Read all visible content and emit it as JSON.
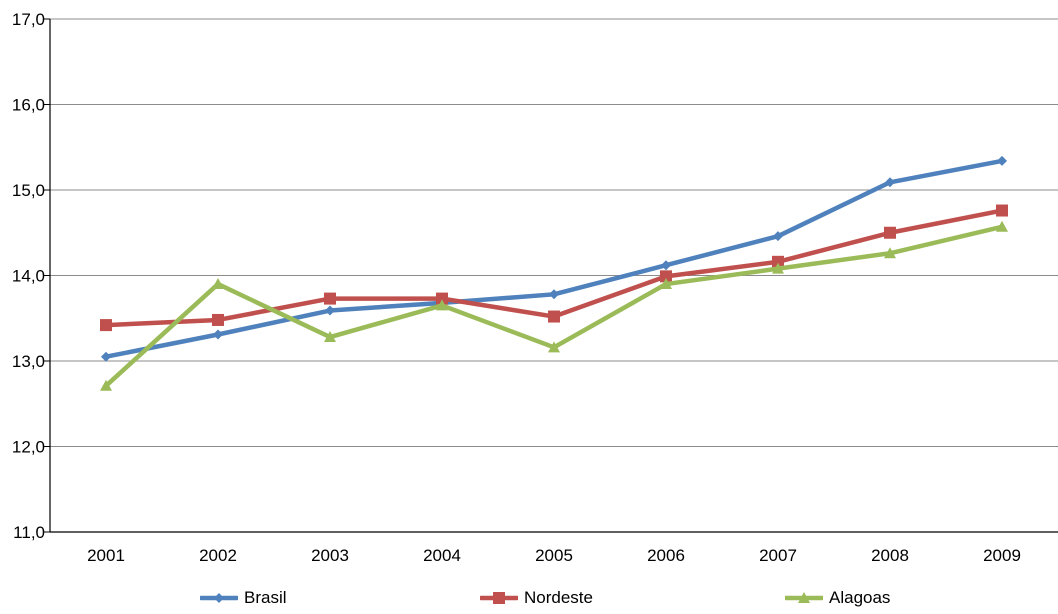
{
  "chart_data": {
    "type": "line",
    "title": "",
    "xlabel": "",
    "ylabel": "",
    "categories": [
      "2001",
      "2002",
      "2003",
      "2004",
      "2005",
      "2006",
      "2007",
      "2008",
      "2009"
    ],
    "ylim": [
      11.0,
      17.0
    ],
    "y_ticks": [
      "11,0",
      "12,0",
      "13,0",
      "14,0",
      "15,0",
      "16,0",
      "17,0"
    ],
    "grid": true,
    "legend_position": "bottom",
    "series": [
      {
        "name": "Brasil",
        "color": "#4f81bd",
        "marker": "diamond",
        "values": [
          13.05,
          13.31,
          13.59,
          13.68,
          13.78,
          14.12,
          14.46,
          15.09,
          15.34
        ]
      },
      {
        "name": "Nordeste",
        "color": "#c0504d",
        "marker": "square",
        "values": [
          13.42,
          13.48,
          13.73,
          13.73,
          13.52,
          13.99,
          14.16,
          14.5,
          14.76
        ]
      },
      {
        "name": "Alagoas",
        "color": "#9bbb59",
        "marker": "triangle",
        "values": [
          12.71,
          13.9,
          13.28,
          13.65,
          13.16,
          13.9,
          14.08,
          14.26,
          14.57
        ]
      }
    ]
  }
}
